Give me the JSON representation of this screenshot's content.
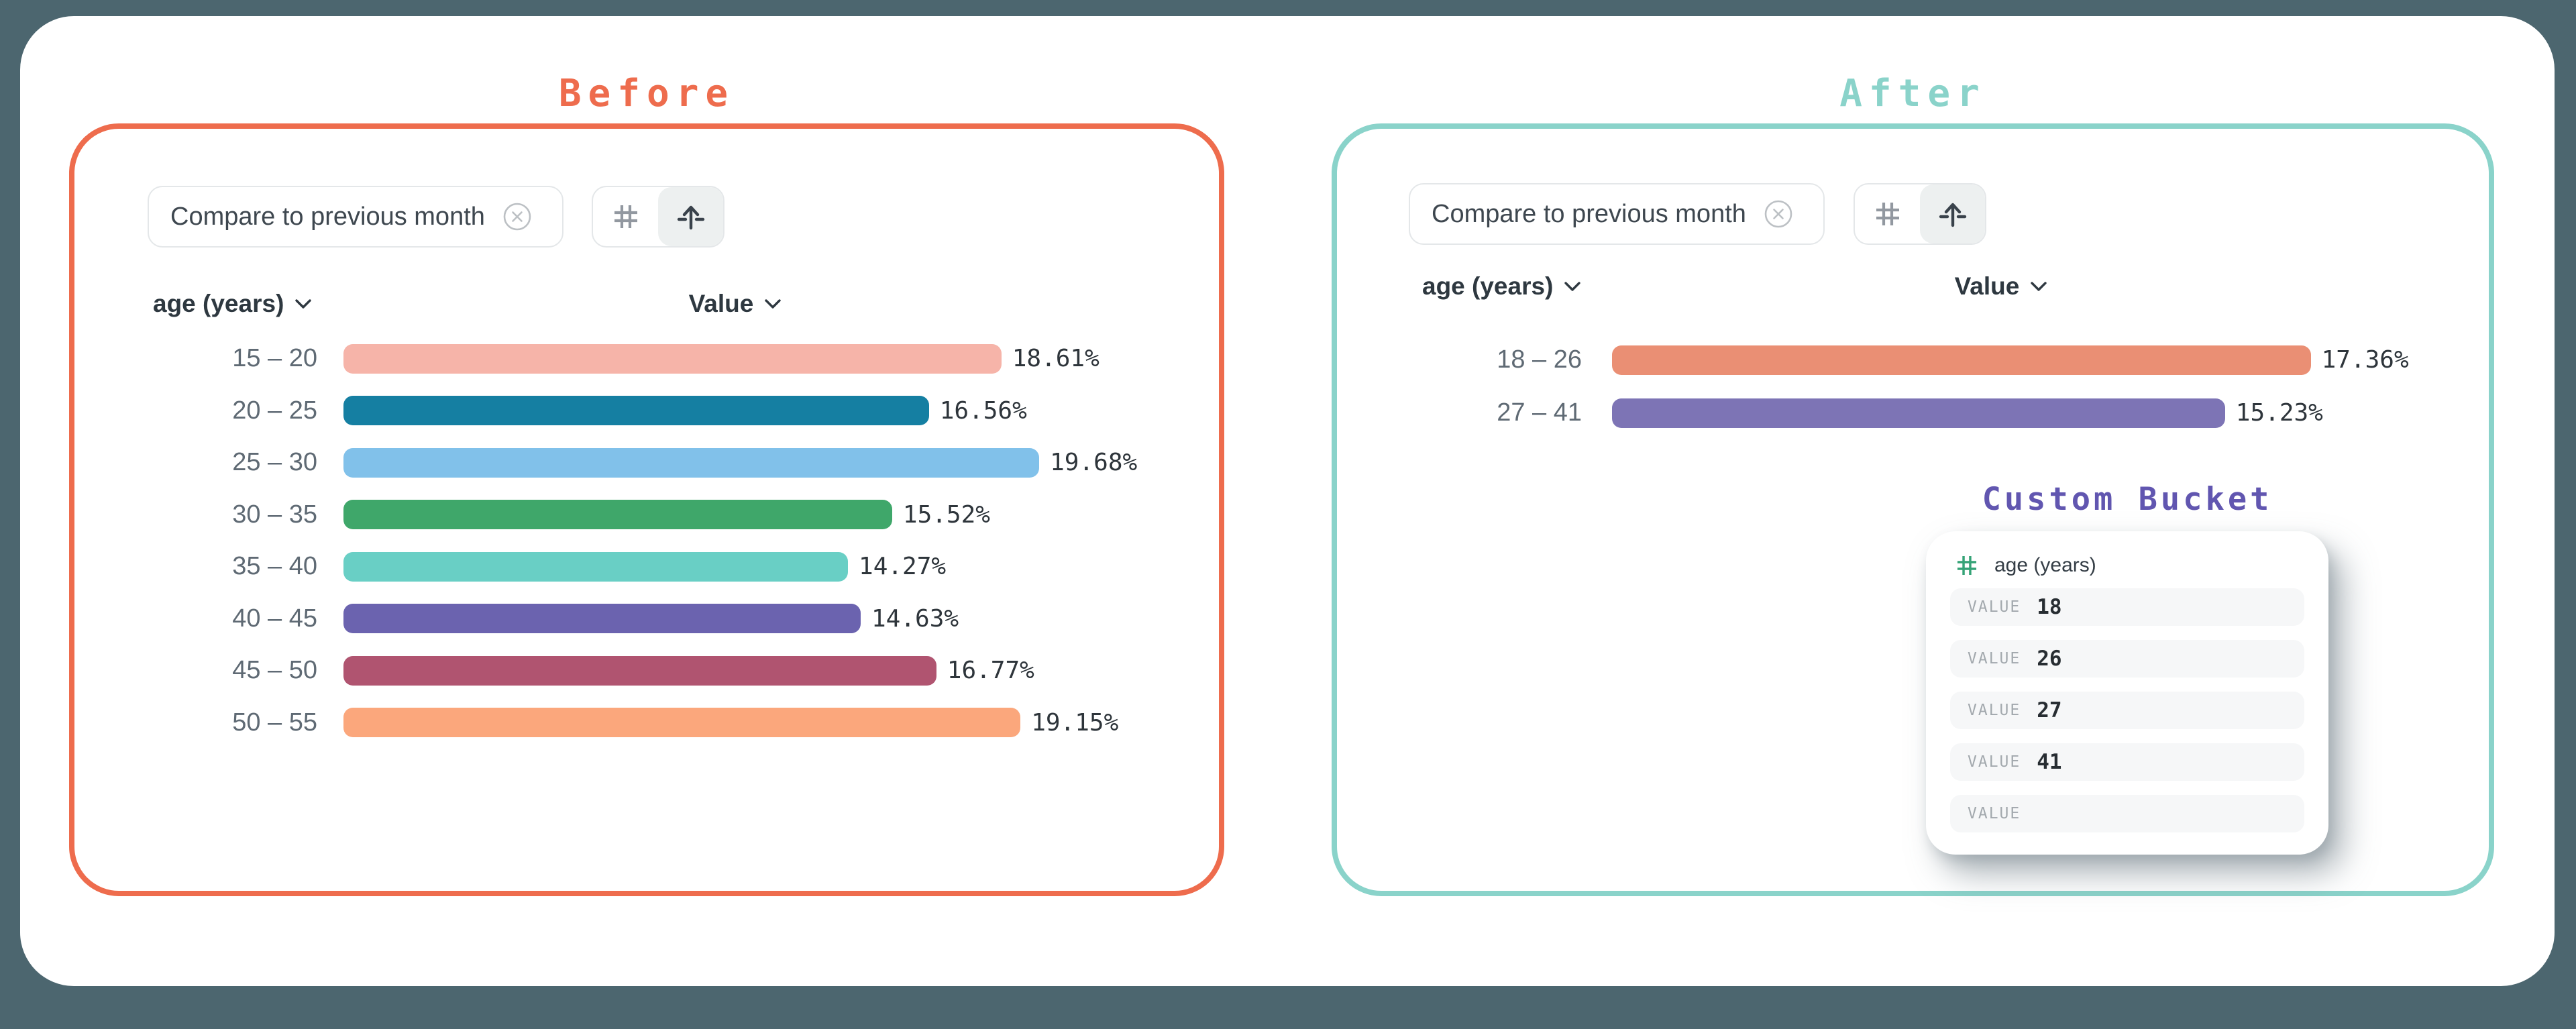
{
  "page": {
    "background": "#4c666f",
    "card_background": "#ffffff"
  },
  "before": {
    "title": "Before",
    "accent": "#ee6c4d",
    "filter_chip": {
      "label": "Compare to previous month",
      "close_icon": "circle-x-icon"
    },
    "view_toggle": {
      "options": [
        "hash-grid-icon",
        "arrow-up-icon"
      ],
      "selected_index": 1
    },
    "columns": {
      "dimension": "age (years)",
      "measure": "Value"
    },
    "chart": {
      "categories": [
        "15 – 20",
        "20 – 25",
        "25 – 30",
        "30 – 35",
        "35 – 40",
        "40 – 45",
        "45 – 50",
        "50 – 55"
      ],
      "values": [
        18.61,
        16.56,
        19.68,
        15.52,
        14.27,
        14.63,
        16.77,
        19.15
      ],
      "value_labels": [
        "18.61%",
        "16.56%",
        "19.68%",
        "15.52%",
        "14.27%",
        "14.63%",
        "16.77%",
        "19.15%"
      ],
      "colors": [
        "#f6b4a9",
        "#157fa2",
        "#81c1ea",
        "#3fa76a",
        "#69cfc5",
        "#6b63af",
        "#b05470",
        "#fba77c"
      ]
    }
  },
  "after": {
    "title": "After",
    "accent": "#8ad3ca",
    "filter_chip": {
      "label": "Compare to previous month",
      "close_icon": "circle-x-icon"
    },
    "view_toggle": {
      "options": [
        "hash-grid-icon",
        "arrow-up-icon"
      ],
      "selected_index": 1
    },
    "columns": {
      "dimension": "age (years)",
      "measure": "Value"
    },
    "chart": {
      "categories": [
        "18 – 26",
        "27 – 41"
      ],
      "values": [
        17.36,
        15.23
      ],
      "value_labels": [
        "17.36%",
        "15.23%"
      ],
      "colors": [
        "#ea8f74",
        "#7d74b5"
      ]
    },
    "custom_bucket": {
      "title": "Custom Bucket",
      "title_color": "#6156b0",
      "field_icon": "hash-grid-icon",
      "field_icon_color": "#35a377",
      "field": "age (years)",
      "rows": [
        {
          "label": "VALUE",
          "value": "18"
        },
        {
          "label": "VALUE",
          "value": "26"
        },
        {
          "label": "VALUE",
          "value": "27"
        },
        {
          "label": "VALUE",
          "value": "41"
        },
        {
          "label": "VALUE",
          "value": ""
        }
      ]
    }
  },
  "chart_data": [
    {
      "type": "bar",
      "orientation": "horizontal",
      "title": "Before",
      "categories": [
        "15 – 20",
        "20 – 25",
        "25 – 30",
        "30 – 35",
        "35 – 40",
        "40 – 45",
        "45 – 50",
        "50 – 55"
      ],
      "values": [
        18.61,
        16.56,
        19.68,
        15.52,
        14.27,
        14.63,
        16.77,
        19.15
      ],
      "value_labels": [
        "18.61%",
        "16.56%",
        "19.68%",
        "15.52%",
        "14.27%",
        "14.63%",
        "16.77%",
        "19.15%"
      ],
      "colors": [
        "#f6b4a9",
        "#157fa2",
        "#81c1ea",
        "#3fa76a",
        "#69cfc5",
        "#6b63af",
        "#b05470",
        "#fba77c"
      ],
      "xlabel": "Value",
      "ylabel": "age (years)",
      "xlim": [
        0,
        20
      ],
      "grid": false,
      "legend": false
    },
    {
      "type": "bar",
      "orientation": "horizontal",
      "title": "After",
      "categories": [
        "18 – 26",
        "27 – 41"
      ],
      "values": [
        17.36,
        15.23
      ],
      "value_labels": [
        "17.36%",
        "15.23%"
      ],
      "colors": [
        "#ea8f74",
        "#7d74b5"
      ],
      "xlabel": "Value",
      "ylabel": "age (years)",
      "xlim": [
        0,
        18
      ],
      "grid": false,
      "legend": false
    }
  ]
}
